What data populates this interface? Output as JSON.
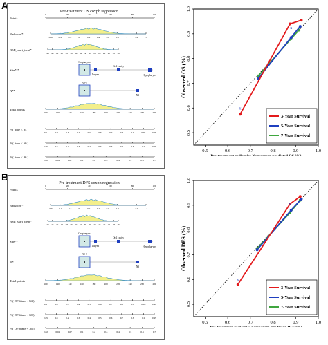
{
  "panels": [
    {
      "letter": "A",
      "nomogram": {
        "title": "Pre-treatment OS coxph regression",
        "rows": [
          {
            "label": "Points",
            "kind": "axis",
            "ticks": [
              "0",
              "20",
              "40",
              "60",
              "80",
              "100"
            ]
          },
          {
            "label": "Radscore*",
            "kind": "axis",
            "ticks": [
              "-0.6",
              "-0.4",
              "-0.2",
              "0",
              "0.2",
              "0.4",
              "0.6",
              "0.8",
              "1",
              "1.2",
              "1.4"
            ]
          },
          {
            "label": "BMI_start_treat*",
            "kind": "axis",
            "ticks": [
              "46",
              "44",
              "42",
              "40",
              "38",
              "36",
              "34",
              "32",
              "30",
              "28",
              "26",
              "24",
              "22",
              "20",
              "18",
              "16"
            ]
          },
          {
            "label": "Site***",
            "kind": "cat",
            "cats": [
              "Oropharynx",
              "Larynx",
              "Oral cavity",
              "Hypopharynx"
            ]
          },
          {
            "label": "N**",
            "kind": "cat",
            "cats": [
              "N0-2",
              "N3"
            ]
          },
          {
            "label": "Total points",
            "kind": "axis",
            "ticks": [
              "100",
              "120",
              "140",
              "160",
              "180",
              "200",
              "220",
              "240",
              "260",
              "280"
            ]
          },
          {
            "label": "Pr( time < 84 )",
            "kind": "axis",
            "ticks": [
              "0.1",
              "0.2",
              "0.3",
              "0.4",
              "0.5",
              "0.6",
              "0.7",
              "0.8",
              "0.9",
              "0.95",
              "0.99"
            ]
          },
          {
            "label": "Pr( time < 60 )",
            "kind": "axis",
            "ticks": [
              "0.05",
              "0.1",
              "0.2",
              "0.3",
              "0.4",
              "0.5",
              "0.6",
              "0.7",
              "0.8",
              "0.9",
              "0.95"
            ]
          },
          {
            "label": "Pr( time < 36 )",
            "kind": "axis",
            "ticks": [
              "0.02",
              "0.04",
              "0.07",
              "0.1",
              "0.2",
              "0.3",
              "0.4",
              "0.5",
              "0.6",
              "0.7"
            ]
          }
        ]
      }
    },
    {
      "letter": "B",
      "nomogram": {
        "title": "Pre-treatment DFS coxph regression",
        "rows": [
          {
            "label": "Points",
            "kind": "axis",
            "ticks": [
              "0",
              "20",
              "40",
              "60",
              "80",
              "100"
            ]
          },
          {
            "label": "Radscore*",
            "kind": "axis",
            "ticks": [
              "-0.6",
              "-0.4",
              "-0.2",
              "0",
              "0.2",
              "0.4",
              "0.6",
              "0.8",
              "1",
              "1.2",
              "1.4"
            ]
          },
          {
            "label": "BMI_start_treat*",
            "kind": "axis",
            "ticks": [
              "46",
              "44",
              "42",
              "40",
              "38",
              "36",
              "34",
              "32",
              "30",
              "28",
              "26",
              "24",
              "22",
              "20",
              "18",
              "16"
            ]
          },
          {
            "label": "Site**",
            "kind": "cat",
            "cats": [
              "Oropharynx",
              "Larynx",
              "Oral cavity",
              "Hypopharynx"
            ]
          },
          {
            "label": "N*",
            "kind": "cat",
            "cats": [
              "N0-2",
              "N3"
            ]
          },
          {
            "label": "Total points",
            "kind": "axis",
            "ticks": [
              "100",
              "120",
              "140",
              "160",
              "180",
              "200",
              "220",
              "240",
              "260",
              "280"
            ]
          },
          {
            "label": "Pr( DFStime < 84 )",
            "kind": "axis",
            "ticks": [
              "0.1",
              "0.2",
              "0.3",
              "0.4",
              "0.5",
              "0.6",
              "0.7",
              "0.8",
              "0.9",
              "0.95",
              "0.99"
            ]
          },
          {
            "label": "Pr( DFStime < 60 )",
            "kind": "axis",
            "ticks": [
              "0.05",
              "0.1",
              "0.2",
              "0.3",
              "0.4",
              "0.5",
              "0.6",
              "0.7",
              "0.8",
              "0.9",
              "0.95"
            ]
          },
          {
            "label": "Pr( DFStime < 36 )",
            "kind": "axis",
            "ticks": [
              "0.02",
              "0.04",
              "0.07",
              "0.1",
              "0.2",
              "0.3",
              "0.4",
              "0.5",
              "0.6",
              "0.7"
            ]
          }
        ]
      }
    }
  ],
  "chart_data": [
    {
      "type": "line",
      "xlabel": "Pre-treatment radiomics Nomogram-predicted OS (%)",
      "ylabel": "Observed OS (%)",
      "xlim": [
        0.45,
        1.0
      ],
      "ylim": [
        0.45,
        1.0
      ],
      "xticks": [
        "0.5",
        "0.6",
        "0.7",
        "0.8",
        "0.9",
        "1.0"
      ],
      "yticks": [
        "0.5",
        "0.6",
        "0.7",
        "0.8",
        "0.9",
        "1.0"
      ],
      "legend_position": "bottom-right",
      "reference_line": "diagonal",
      "series": [
        {
          "name": "3-Year Survival",
          "color": "#e31a1c",
          "x": [
            0.655,
            0.875,
            0.925
          ],
          "y": [
            0.575,
            0.94,
            0.955
          ]
        },
        {
          "name": "5-Year Survival",
          "color": "#1f3fbf",
          "x": [
            0.735,
            0.88,
            0.92
          ],
          "y": [
            0.72,
            0.885,
            0.93
          ]
        },
        {
          "name": "7-Year Survival",
          "color": "#3fa63f",
          "x": [
            0.735,
            0.88,
            0.915
          ],
          "y": [
            0.73,
            0.88,
            0.915
          ]
        }
      ],
      "error_marks": [
        {
          "x": 0.655,
          "y": 0.6
        },
        {
          "x": 0.88,
          "y": 0.925
        }
      ]
    },
    {
      "type": "line",
      "xlabel": "Pre-treatment radiomics nomogram-predicted DFS (%)",
      "ylabel": "Observed DFS (%)",
      "xlim": [
        0.45,
        1.0
      ],
      "ylim": [
        0.45,
        1.0
      ],
      "xticks": [
        "0.5",
        "0.6",
        "0.7",
        "0.8",
        "0.9",
        "1.0"
      ],
      "yticks": [
        "0.5",
        "0.6",
        "0.7",
        "0.8",
        "0.9",
        "1.0"
      ],
      "legend_position": "bottom-right",
      "reference_line": "diagonal",
      "series": [
        {
          "name": "3-Year Survival",
          "color": "#e31a1c",
          "x": [
            0.645,
            0.875,
            0.92
          ],
          "y": [
            0.58,
            0.905,
            0.935
          ]
        },
        {
          "name": "5-Year Survival",
          "color": "#1f3fbf",
          "x": [
            0.73,
            0.88,
            0.925
          ],
          "y": [
            0.72,
            0.88,
            0.925
          ]
        },
        {
          "name": "7-Year Survival",
          "color": "#3fa63f",
          "x": [
            0.73,
            0.875,
            0.92
          ],
          "y": [
            0.725,
            0.87,
            0.92
          ]
        }
      ],
      "error_marks": [
        {
          "x": 0.645,
          "y": 0.6
        },
        {
          "x": 0.875,
          "y": 0.905
        }
      ]
    }
  ]
}
